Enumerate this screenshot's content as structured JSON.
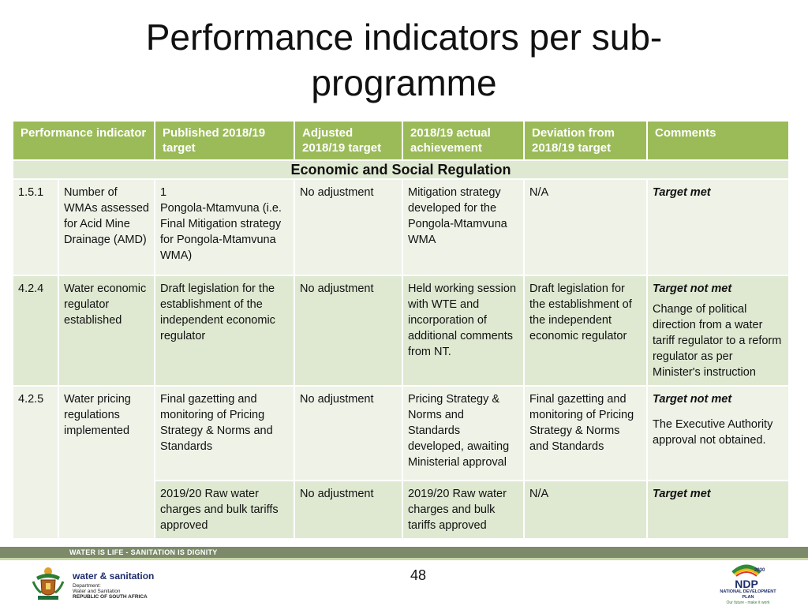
{
  "title": "Performance indicators per sub-\nprogramme",
  "table": {
    "headers": [
      "Performance indicator",
      "Published 2018/19 target",
      "Adjusted 2018/19 target",
      "2018/19 actual achievement",
      "Deviation from 2018/19 target",
      "Comments"
    ],
    "section": "Economic and Social Regulation",
    "rows": [
      {
        "num": "1.5.1",
        "indicator": "Number of WMAs assessed for Acid Mine Drainage (AMD)",
        "published": "1\nPongola-Mtamvuna (i.e. Final Mitigation strategy for Pongola-Mtamvuna WMA)",
        "adjusted": "No adjustment",
        "actual": "Mitigation strategy developed for the Pongola-Mtamvuna WMA",
        "deviation": "N/A",
        "comment_status": "Target met",
        "comment_text": ""
      },
      {
        "num": "4.2.4",
        "indicator": "Water economic regulator established",
        "published": "Draft legislation for the establishment of the independent economic regulator",
        "adjusted": "No adjustment",
        "actual": "Held working session with WTE and incorporation of additional comments from NT.",
        "deviation": "Draft legislation for the establishment of the independent economic regulator",
        "comment_status": "Target not met",
        "comment_text": "Change of political direction from a water tariff regulator to a reform regulator as per Minister's instruction"
      },
      {
        "num": "4.2.5",
        "indicator": "Water pricing regulations implemented",
        "published": "Final gazetting and monitoring of Pricing Strategy & Norms and Standards",
        "adjusted": "No adjustment",
        "actual": "Pricing Strategy & Norms and Standards developed, awaiting Ministerial approval",
        "deviation": "Final gazetting and monitoring of Pricing Strategy & Norms and Standards",
        "comment_status": "Target not met",
        "comment_text": "The Executive Authority approval not obtained."
      },
      {
        "published": "2019/20 Raw water charges and bulk tariffs approved",
        "adjusted": "No adjustment",
        "actual": "2019/20 Raw water charges and bulk tariffs approved",
        "deviation": "N/A",
        "comment_status": "Target met"
      }
    ]
  },
  "footer": {
    "slogan": "WATER IS LIFE - SANITATION IS DIGNITY",
    "slide_number": "48",
    "dept_name": "water & sanitation",
    "dept_lines": [
      "Department:",
      "Water and Sanitation",
      "REPUBLIC OF SOUTH AFRICA"
    ],
    "ndp_year": "2030",
    "ndp_abbr": "NDP",
    "ndp_name": "NATIONAL DEVELOPMENT PLAN",
    "ndp_tagline": "Our future - make it work"
  },
  "colors": {
    "header_bg": "#9bbb59",
    "row_dark": "#dfe9d2",
    "row_light": "#eef2e7",
    "footer_band": "#7c8a6a"
  },
  "icons": [
    "coat-of-arms-icon",
    "ndp-logo-icon"
  ]
}
